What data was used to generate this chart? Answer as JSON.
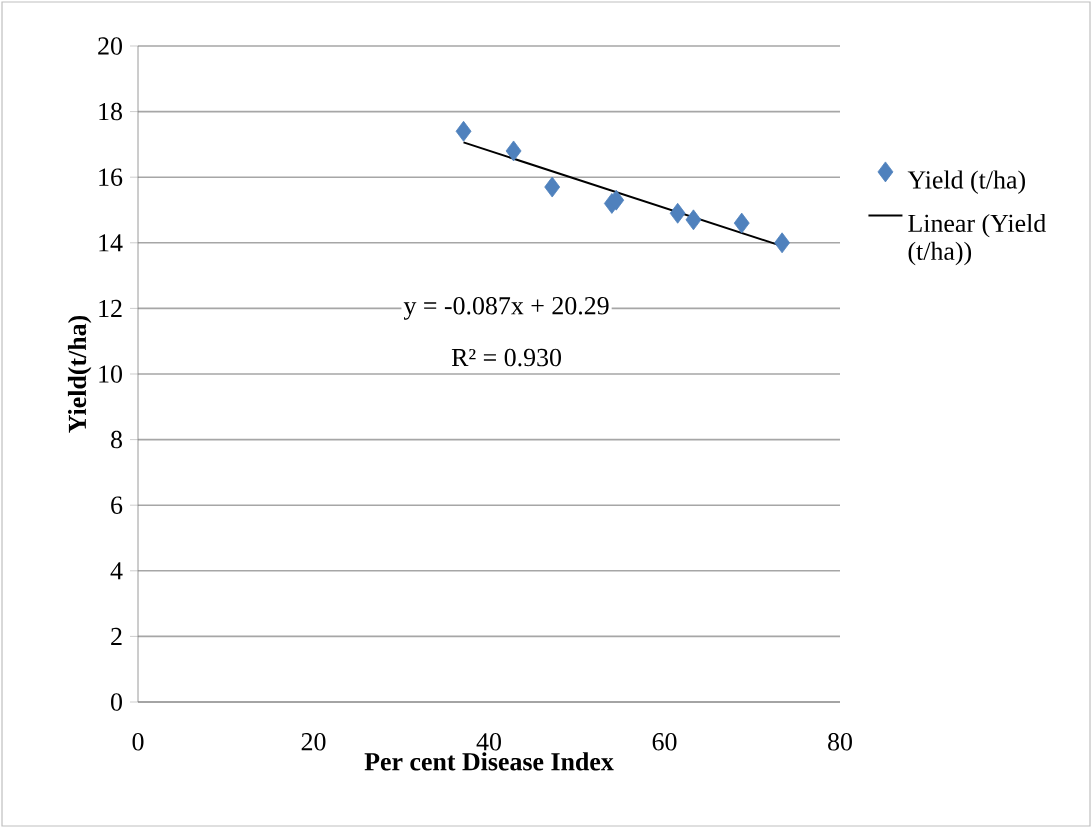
{
  "chart_data": {
    "type": "scatter",
    "xlabel": "Per cent Disease Index",
    "ylabel": "Yield(t/ha)",
    "xlim": [
      0,
      80
    ],
    "xticks": [
      0,
      20,
      40,
      60,
      80
    ],
    "ylim": [
      0,
      20
    ],
    "yticks": [
      0,
      2,
      4,
      6,
      8,
      10,
      12,
      14,
      16,
      18,
      20
    ],
    "grid": "y",
    "legend": "right",
    "marker": "diamond",
    "annotations": [
      "y = -0.087x + 20.29",
      "R² = 0.930"
    ],
    "series": [
      {
        "name": "Yield (t/ha)",
        "color": "#4f81bd",
        "x": [
          37.1,
          42.8,
          47.2,
          54.0,
          54.5,
          61.5,
          63.3,
          68.8,
          73.4
        ],
        "values": [
          17.4,
          16.8,
          15.7,
          15.2,
          15.3,
          14.9,
          14.7,
          14.6,
          14.0
        ]
      },
      {
        "name": "Linear (Yield (t/ha))",
        "type": "line",
        "color": "#000000",
        "marker": "none",
        "line_style": "solid",
        "x": [
          37.1,
          73.4
        ],
        "values": [
          17.06,
          13.9
        ]
      }
    ]
  }
}
